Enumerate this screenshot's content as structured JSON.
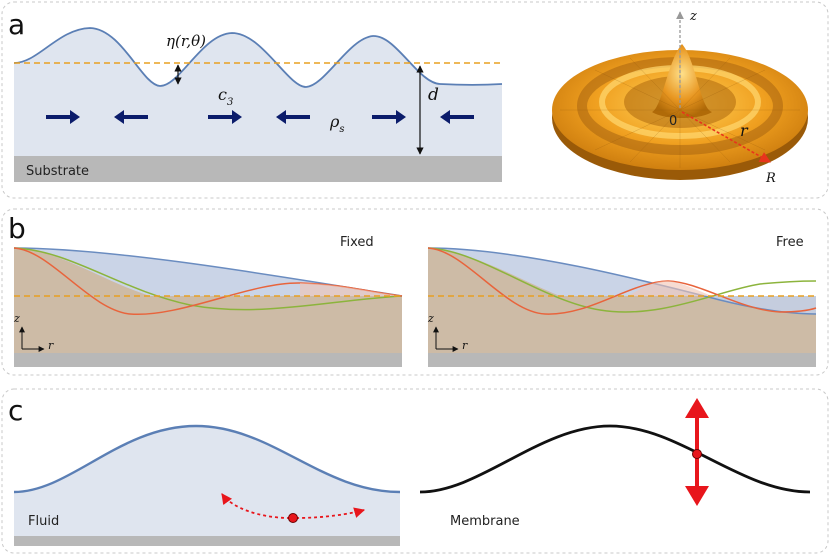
{
  "panel_a": {
    "letter": "a",
    "eta_label": "η(r,θ)",
    "c3_label": "c",
    "c3_sub": "3",
    "d_label": "d",
    "rho_label": "ρ",
    "rho_sub": "s",
    "substrate_label": "Substrate",
    "axis_z": "z",
    "axis_origin": "0",
    "axis_r": "r",
    "axis_R": "R"
  },
  "panel_b": {
    "letter": "b",
    "left_title": "Fixed",
    "right_title": "Free",
    "axis_z": "z",
    "axis_r": "r"
  },
  "panel_c": {
    "letter": "c",
    "fluid_label": "Fluid",
    "membrane_label": "Membrane"
  },
  "colors": {
    "fluid_fill": "#dfe5ef",
    "surface_line": "#5b7fb5",
    "dashed_level": "#e8a020",
    "arrow_navy": "#0b1c6b",
    "substrate_gray": "#b8b8b8",
    "mode_blue": "#6a8cc0",
    "mode_green": "#8cb43c",
    "mode_red": "#e8643c",
    "panel_border": "#c8c8c8",
    "motion_red": "#e8161c"
  }
}
